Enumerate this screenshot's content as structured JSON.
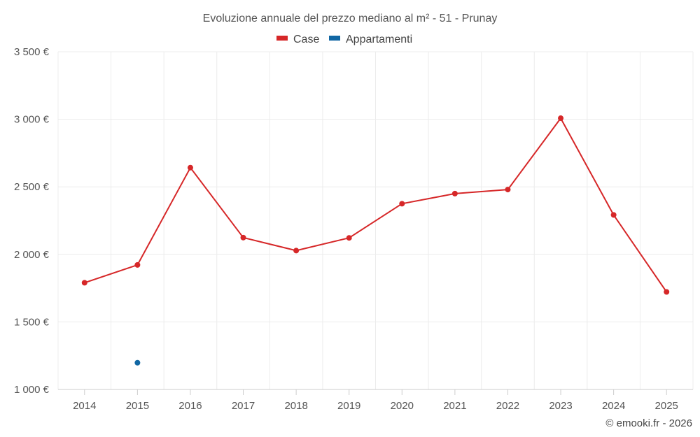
{
  "chart_data": {
    "type": "line",
    "title": "Evoluzione annuale del prezzo mediano al m² - 51 - Prunay",
    "categories": [
      "2014",
      "2015",
      "2016",
      "2017",
      "2018",
      "2019",
      "2020",
      "2021",
      "2022",
      "2023",
      "2024",
      "2025"
    ],
    "series": [
      {
        "name": "Case",
        "color": "#d62728",
        "values": [
          1790,
          1922,
          2642,
          2124,
          2028,
          2122,
          2375,
          2450,
          2480,
          3008,
          2292,
          1722
        ]
      },
      {
        "name": "Appartamenti",
        "color": "#1167a4",
        "values": [
          null,
          1198,
          null,
          null,
          null,
          null,
          null,
          null,
          null,
          null,
          null,
          null
        ]
      }
    ],
    "ylim": [
      1000,
      3500
    ],
    "yticks": [
      1000,
      1500,
      2000,
      2500,
      3000,
      3500
    ],
    "ytick_labels": [
      "1 000 €",
      "1 500 €",
      "2 000 €",
      "2 500 €",
      "3 000 €",
      "3 500 €"
    ],
    "legend_position": "top-center",
    "grid": true
  },
  "credit": "© emooki.fr - 2026"
}
